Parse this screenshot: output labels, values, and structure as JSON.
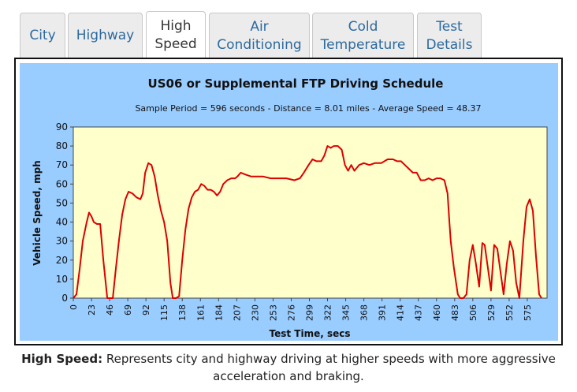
{
  "tabs": [
    {
      "label": "City",
      "active": false
    },
    {
      "label": "Highway",
      "active": false
    },
    {
      "label": "High\nSpeed",
      "active": true
    },
    {
      "label": "Air\nConditioning",
      "active": false
    },
    {
      "label": "Cold\nTemperature",
      "active": false
    },
    {
      "label": "Test\nDetails",
      "active": false
    }
  ],
  "caption": {
    "title": "High Speed:",
    "text": " Represents city and highway driving at higher speeds with more aggressive acceleration and braking."
  },
  "colors": {
    "panel_background": "#99ccff",
    "plot_background": "#ffffcc",
    "series_line": "#dd0000",
    "tab_text": "#2c6aa0"
  },
  "chart_data": {
    "type": "line",
    "title": "US06 or Supplemental FTP Driving Schedule",
    "subtitle": "Sample Period = 596 seconds - Distance = 8.01 miles - Average Speed = 48.37",
    "xlabel": "Test Time, secs",
    "ylabel": "Vehicle Speed, mph",
    "xlim": [
      0,
      600
    ],
    "ylim": [
      0,
      90
    ],
    "yticks": [
      0,
      10,
      20,
      30,
      40,
      50,
      60,
      70,
      80,
      90
    ],
    "xticks": [
      "0",
      "23",
      "46",
      "69",
      "92",
      "115",
      "138",
      "161",
      "184",
      "207",
      "230",
      "253",
      "276",
      "299",
      "322",
      "345",
      "368",
      "391",
      "414",
      "437",
      "460",
      "483",
      "506",
      "529",
      "552",
      "575"
    ],
    "xtick_step": 23,
    "grid": false,
    "series": [
      {
        "x": [
          0,
          4,
          8,
          12,
          17,
          20,
          23,
          26,
          30,
          34,
          38,
          43,
          45,
          47,
          50,
          54,
          58,
          62,
          66,
          70,
          75,
          80,
          85,
          88,
          91,
          95,
          99,
          103,
          107,
          111,
          115,
          119,
          123,
          126,
          130,
          134,
          138,
          142,
          146,
          150,
          154,
          158,
          162,
          166,
          170,
          174,
          178,
          182,
          186,
          190,
          195,
          200,
          205,
          208,
          212,
          218,
          225,
          232,
          240,
          250,
          260,
          270,
          280,
          287,
          292,
          298,
          303,
          308,
          314,
          318,
          322,
          326,
          330,
          335,
          340,
          344,
          348,
          352,
          356,
          362,
          368,
          375,
          382,
          390,
          398,
          405,
          410,
          415,
          420,
          425,
          430,
          435,
          440,
          445,
          450,
          455,
          460,
          465,
          470,
          474,
          476,
          478,
          482,
          487,
          490,
          494,
          498,
          502,
          506,
          510,
          514,
          518,
          521,
          525,
          529,
          533,
          537,
          541,
          545,
          549,
          553,
          557,
          561,
          565,
          570,
          574,
          578,
          582,
          586,
          590,
          593
        ],
        "y": [
          0,
          2,
          15,
          30,
          40,
          45,
          43,
          40,
          39,
          39,
          20,
          0,
          0,
          0,
          0,
          16,
          31,
          44,
          52,
          56,
          55,
          53,
          52,
          55,
          66,
          71,
          70,
          64,
          54,
          46,
          40,
          30,
          8,
          0,
          0,
          1,
          20,
          36,
          47,
          53,
          56,
          57,
          60,
          59,
          57,
          57,
          56,
          54,
          56,
          60,
          62,
          63,
          63,
          64,
          66,
          65,
          64,
          64,
          64,
          63,
          63,
          63,
          62,
          63,
          66,
          70,
          73,
          72,
          72,
          75,
          80,
          79,
          80,
          80,
          78,
          70,
          67,
          70,
          67,
          70,
          71,
          70,
          71,
          71,
          73,
          73,
          72,
          72,
          70,
          68,
          66,
          66,
          62,
          62,
          63,
          62,
          63,
          63,
          62,
          55,
          42,
          30,
          16,
          2,
          0,
          0,
          2,
          20,
          28,
          18,
          6,
          29,
          28,
          16,
          4,
          28,
          26,
          14,
          2,
          18,
          30,
          25,
          8,
          0,
          30,
          48,
          52,
          46,
          22,
          2,
          0
        ]
      }
    ]
  }
}
